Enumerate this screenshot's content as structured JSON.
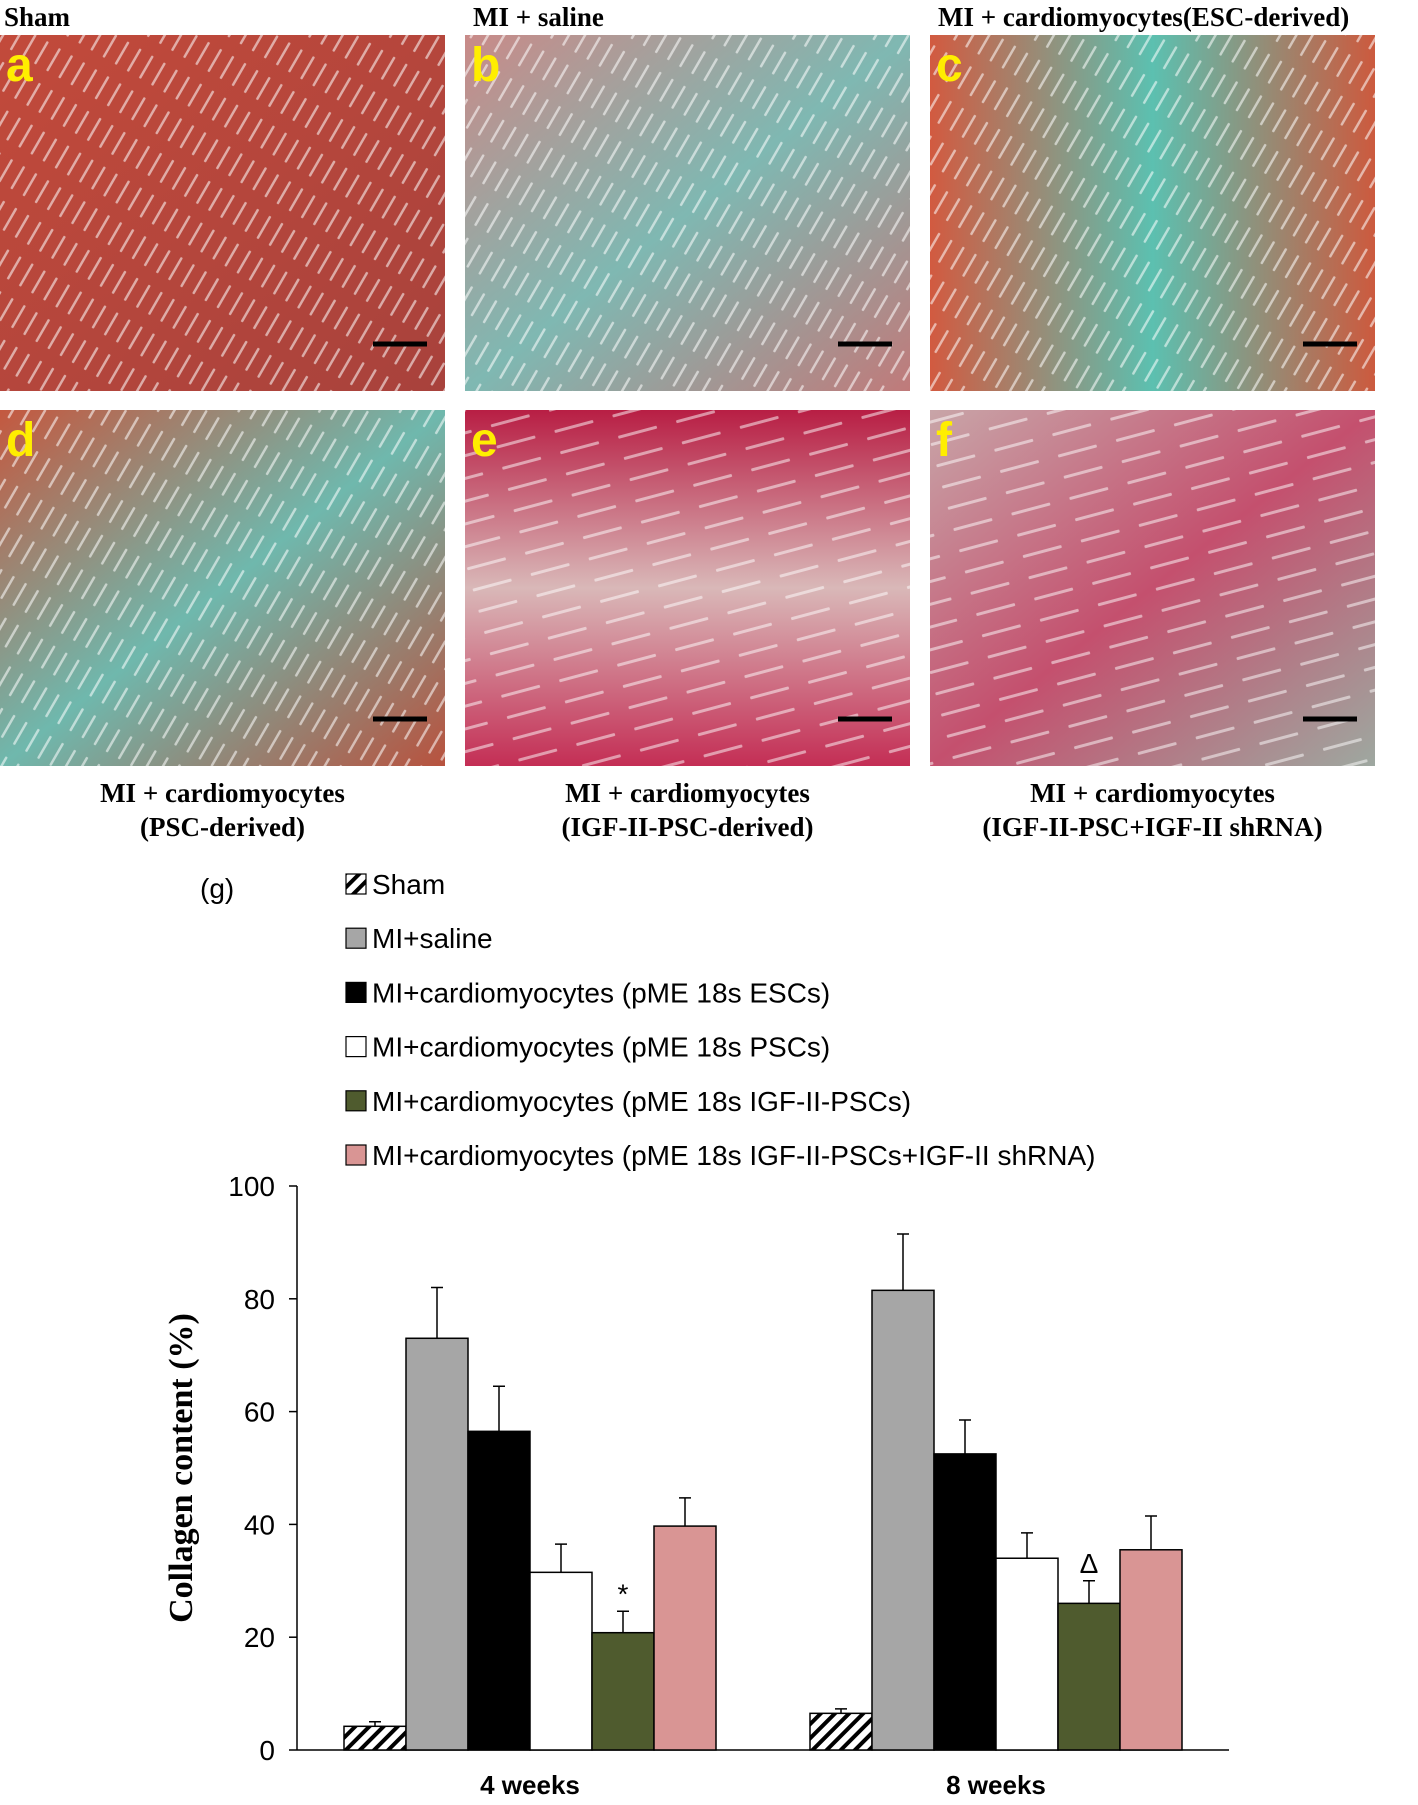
{
  "panels": [
    {
      "letter": "a",
      "label_lines": [
        "Sham"
      ]
    },
    {
      "letter": "b",
      "label_lines": [
        "MI + saline"
      ]
    },
    {
      "letter": "c",
      "label_lines": [
        "MI + cardiomyocytes(ESC-derived)"
      ]
    },
    {
      "letter": "d",
      "label_lines": [
        "MI + cardiomyocytes",
        "(PSC-derived)"
      ]
    },
    {
      "letter": "e",
      "label_lines": [
        "MI + cardiomyocytes",
        "(IGF-II-PSC-derived)"
      ]
    },
    {
      "letter": "f",
      "label_lines": [
        "MI + cardiomyocytes",
        "(IGF-II-PSC+IGF-II shRNA)"
      ]
    }
  ],
  "chart_data": {
    "type": "bar",
    "panel_label": "(g)",
    "y_label": "Collagen content (%)",
    "categories": [
      "4 weeks",
      "8 weeks"
    ],
    "series": [
      {
        "name": "Sham",
        "color": "#ffffff",
        "hatch": true,
        "values": [
          4.2,
          6.5
        ],
        "errors": [
          0.8,
          0.8
        ]
      },
      {
        "name": "MI+saline",
        "color": "#a6a6a6",
        "values": [
          73,
          81.5
        ],
        "errors": [
          9,
          10
        ]
      },
      {
        "name": "MI+cardiomyocytes (pME 18s ESCs)",
        "color": "#000000",
        "values": [
          56.5,
          52.5
        ],
        "errors": [
          8,
          6
        ]
      },
      {
        "name": "MI+cardiomyocytes (pME 18s PSCs)",
        "color": "#ffffff",
        "values": [
          31.5,
          34
        ],
        "errors": [
          5,
          4.5
        ]
      },
      {
        "name": "MI+cardiomyocytes (pME 18s IGF-II-PSCs)",
        "color": "#4f5b2e",
        "values": [
          20.8,
          26
        ],
        "errors": [
          3.8,
          4
        ],
        "value_markers": [
          "*",
          "Δ"
        ]
      },
      {
        "name": "MI+cardiomyocytes (pME 18s IGF-II-PSCs+IGF-II shRNA)",
        "color": "#d99594",
        "values": [
          39.7,
          35.5
        ],
        "errors": [
          5,
          6
        ]
      }
    ],
    "ylim": [
      0,
      100
    ],
    "yticks": [
      0,
      20,
      40,
      60,
      80,
      100
    ]
  }
}
